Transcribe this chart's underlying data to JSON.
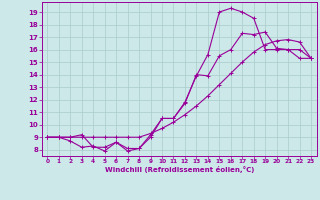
{
  "xlabel": "Windchill (Refroidissement éolien,°C)",
  "bg_color": "#cce8e8",
  "grid_color": "#aacccc",
  "line_color": "#990099",
  "xlim": [
    -0.5,
    23.5
  ],
  "ylim": [
    7.5,
    19.8
  ],
  "xticks": [
    0,
    1,
    2,
    3,
    4,
    5,
    6,
    7,
    8,
    9,
    10,
    11,
    12,
    13,
    14,
    15,
    16,
    17,
    18,
    19,
    20,
    21,
    22,
    23
  ],
  "yticks": [
    8,
    9,
    10,
    11,
    12,
    13,
    14,
    15,
    16,
    17,
    18,
    19
  ],
  "line1_x": [
    0,
    1,
    2,
    3,
    4,
    5,
    6,
    7,
    8,
    9,
    10,
    11,
    12,
    13,
    14,
    15,
    16,
    17,
    18,
    19,
    20,
    21,
    22,
    23
  ],
  "line1_y": [
    9.0,
    9.0,
    9.0,
    9.2,
    8.2,
    8.2,
    8.6,
    7.9,
    8.1,
    9.0,
    10.5,
    10.5,
    11.8,
    13.9,
    15.6,
    19.0,
    19.3,
    19.0,
    18.5,
    16.0,
    16.0,
    16.0,
    15.3,
    15.3
  ],
  "line2_x": [
    0,
    1,
    2,
    3,
    4,
    5,
    6,
    7,
    8,
    9,
    10,
    11,
    12,
    13,
    14,
    15,
    16,
    17,
    18,
    19,
    20,
    21,
    22,
    23
  ],
  "line2_y": [
    9.0,
    9.0,
    8.7,
    8.2,
    8.3,
    7.9,
    8.6,
    8.1,
    8.1,
    9.2,
    10.5,
    10.5,
    11.7,
    14.0,
    13.9,
    15.5,
    16.0,
    17.3,
    17.2,
    17.4,
    16.1,
    16.0,
    16.0,
    15.3
  ],
  "line3_x": [
    0,
    1,
    2,
    3,
    4,
    5,
    6,
    7,
    8,
    9,
    10,
    11,
    12,
    13,
    14,
    15,
    16,
    17,
    18,
    19,
    20,
    21,
    22,
    23
  ],
  "line3_y": [
    9.0,
    9.0,
    9.0,
    9.0,
    9.0,
    9.0,
    9.0,
    9.0,
    9.0,
    9.3,
    9.7,
    10.2,
    10.8,
    11.5,
    12.3,
    13.2,
    14.1,
    15.0,
    15.8,
    16.4,
    16.7,
    16.8,
    16.6,
    15.3
  ]
}
